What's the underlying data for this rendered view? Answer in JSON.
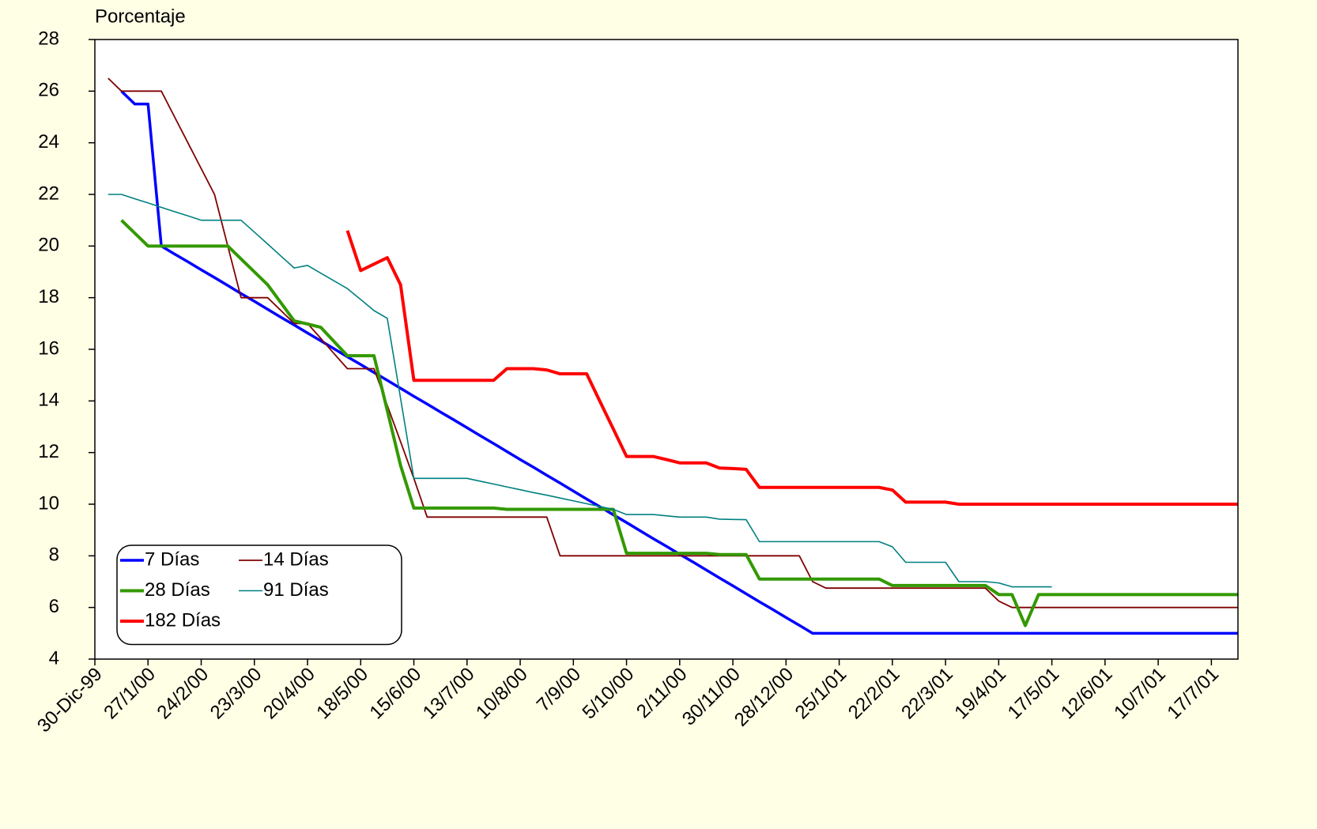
{
  "chart_data": {
    "type": "line",
    "y_axis_label": "Porcentaje",
    "categories": [
      "30-Dic-99",
      null,
      null,
      null,
      "27/1/00",
      null,
      null,
      null,
      "24/2/00",
      null,
      null,
      null,
      "23/3/00",
      null,
      null,
      null,
      "20/4/00",
      null,
      null,
      null,
      "18/5/00",
      null,
      null,
      null,
      "15/6/00",
      null,
      null,
      null,
      "13/7/00",
      null,
      null,
      null,
      "10/8/00",
      null,
      null,
      null,
      "7/9/00",
      null,
      null,
      null,
      "5/10/00",
      null,
      null,
      null,
      "2/11/00",
      null,
      null,
      null,
      "30/11/00",
      null,
      null,
      null,
      "28/12/00",
      null,
      null,
      null,
      "25/1/01",
      null,
      null,
      null,
      "22/2/01",
      null,
      null,
      null,
      "22/3/01",
      null,
      null,
      null,
      "19/4/01",
      null,
      null,
      null,
      "17/5/01",
      null,
      null,
      null,
      "12/6/01",
      null,
      null,
      null,
      "10/7/01",
      null,
      null,
      null,
      "17/7/01",
      null,
      null
    ],
    "series": [
      {
        "name": "7 Días",
        "color": "#0000ff",
        "values": [
          null,
          null,
          26,
          25.5,
          25.5,
          20,
          19.69,
          19.39,
          19.08,
          18.78,
          18.47,
          18.16,
          17.86,
          17.55,
          17.24,
          16.94,
          16.63,
          16.33,
          16.02,
          15.71,
          15.41,
          15.1,
          14.8,
          14.49,
          14.18,
          13.88,
          13.57,
          13.27,
          12.96,
          12.65,
          12.35,
          12.04,
          11.73,
          11.43,
          11.12,
          10.82,
          10.51,
          10.2,
          9.9,
          9.59,
          9.29,
          8.98,
          8.67,
          8.37,
          8.06,
          7.76,
          7.45,
          7.14,
          6.84,
          6.53,
          6.22,
          5.92,
          5.61,
          5.31,
          5,
          5,
          5,
          5,
          5,
          5,
          5,
          5,
          5,
          5,
          5,
          5,
          5,
          5,
          5,
          5,
          5,
          5,
          5,
          5,
          5,
          5,
          5,
          5,
          5,
          5,
          5,
          5,
          5,
          5,
          5,
          5,
          5
        ]
      },
      {
        "name": "14 Días",
        "color": "#800000",
        "values": [
          null,
          26.5,
          26,
          26,
          26,
          26,
          25,
          24,
          23,
          22,
          20,
          18,
          18,
          18,
          17.5,
          17,
          17,
          16.42,
          15.83,
          15.25,
          15.25,
          15.25,
          13.83,
          12.42,
          11,
          9.5,
          9.5,
          9.5,
          9.5,
          9.5,
          9.5,
          9.5,
          9.5,
          9.5,
          9.5,
          8,
          8,
          8,
          8,
          8,
          8,
          8,
          8,
          8,
          8,
          8,
          8,
          8,
          8,
          8,
          8,
          8,
          8,
          8,
          7,
          6.75,
          6.75,
          6.75,
          6.75,
          6.75,
          6.75,
          6.75,
          6.75,
          6.75,
          6.75,
          6.75,
          6.75,
          6.75,
          6.25,
          6,
          6,
          6,
          6,
          6,
          6,
          6,
          6,
          6,
          6,
          6,
          6,
          6,
          6,
          6,
          6,
          6,
          6
        ]
      },
      {
        "name": "28 Días",
        "color": "#339900",
        "values": [
          null,
          null,
          21,
          20.5,
          20,
          20,
          20,
          20,
          20,
          20,
          20,
          19.5,
          19,
          18.5,
          17.8,
          17.1,
          16.98,
          16.85,
          16.3,
          15.75,
          15.75,
          15.75,
          13.63,
          11.5,
          9.85,
          9.85,
          9.85,
          9.85,
          9.85,
          9.85,
          9.85,
          9.8,
          9.8,
          9.8,
          9.8,
          9.8,
          9.8,
          9.8,
          9.8,
          9.8,
          8.1,
          8.1,
          8.1,
          8.1,
          8.1,
          8.1,
          8.1,
          8.05,
          8.05,
          8.05,
          7.1,
          7.1,
          7.1,
          7.1,
          7.1,
          7.1,
          7.1,
          7.1,
          7.1,
          7.1,
          6.85,
          6.85,
          6.85,
          6.85,
          6.85,
          6.85,
          6.85,
          6.85,
          6.5,
          6.5,
          5.3,
          6.5,
          6.5,
          6.5,
          6.5,
          6.5,
          6.5,
          6.5,
          6.5,
          6.5,
          6.5,
          6.5,
          6.5,
          6.5,
          6.5,
          6.5,
          6.5
        ]
      },
      {
        "name": "91 Días",
        "color": "#008080",
        "values": [
          null,
          22,
          22,
          21.83,
          21.67,
          21.5,
          21.33,
          21.17,
          21,
          21,
          21,
          21,
          20.54,
          20.08,
          19.61,
          19.15,
          19.25,
          18.95,
          18.65,
          18.35,
          17.93,
          17.5,
          17.2,
          14.1,
          11,
          11,
          11,
          11,
          11,
          10.89,
          10.78,
          10.67,
          10.56,
          10.45,
          10.35,
          10.24,
          10.13,
          10.02,
          9.91,
          9.8,
          9.6,
          9.6,
          9.6,
          9.55,
          9.5,
          9.5,
          9.5,
          9.42,
          9.41,
          9.4,
          8.55,
          8.55,
          8.55,
          8.55,
          8.55,
          8.55,
          8.55,
          8.55,
          8.55,
          8.55,
          8.35,
          7.75,
          7.75,
          7.75,
          7.75,
          7,
          7,
          7,
          6.95,
          6.8,
          6.8,
          6.8,
          6.8,
          null,
          null,
          null,
          null,
          null,
          null,
          null,
          null,
          null,
          null,
          null,
          null,
          null,
          null
        ]
      },
      {
        "name": "182 Días",
        "color": "#ff0000",
        "values": [
          null,
          null,
          null,
          null,
          null,
          null,
          null,
          null,
          null,
          null,
          null,
          null,
          null,
          null,
          null,
          null,
          null,
          null,
          null,
          20.6,
          19.05,
          19.3,
          19.55,
          18.5,
          14.8,
          14.8,
          14.8,
          14.8,
          14.8,
          14.8,
          14.8,
          15.25,
          15.25,
          15.25,
          15.2,
          15.05,
          15.05,
          15.05,
          13.98,
          12.92,
          11.85,
          11.85,
          11.85,
          11.73,
          11.6,
          11.6,
          11.6,
          11.4,
          11.38,
          11.35,
          10.65,
          10.65,
          10.65,
          10.65,
          10.65,
          10.65,
          10.65,
          10.65,
          10.65,
          10.65,
          10.55,
          10.08,
          10.08,
          10.08,
          10.08,
          10,
          10,
          10,
          10,
          10,
          10,
          10,
          10,
          10,
          10,
          10,
          10,
          10,
          10,
          10,
          10,
          10,
          10,
          10,
          10,
          10,
          10
        ]
      }
    ],
    "ylim": [
      4,
      28
    ],
    "yticks": [
      4,
      6,
      8,
      10,
      12,
      14,
      16,
      18,
      20,
      22,
      24,
      26,
      28
    ],
    "grid": false,
    "legend": "lower left"
  }
}
